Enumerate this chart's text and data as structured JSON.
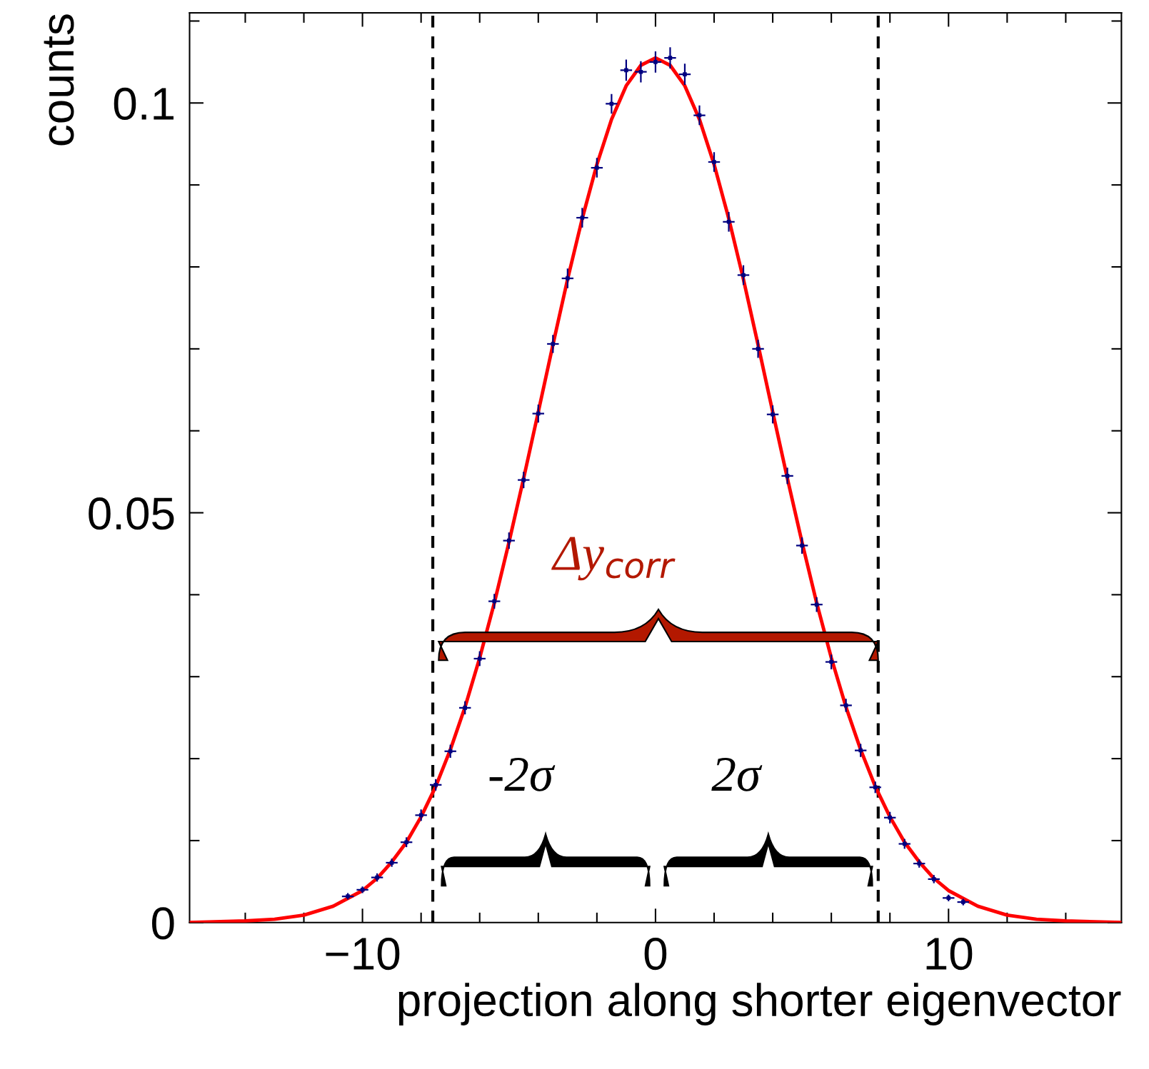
{
  "chart_data": {
    "type": "scatter",
    "xlabel": "projection along shorter eigenvector",
    "ylabel": "counts",
    "xlim": [
      -15.9,
      15.9
    ],
    "ylim": [
      0,
      0.111
    ],
    "xticks": [
      {
        "value": -14,
        "label": null
      },
      {
        "value": -12,
        "label": null
      },
      {
        "value": -10,
        "label": "−10"
      },
      {
        "value": -8,
        "label": null
      },
      {
        "value": -6,
        "label": null
      },
      {
        "value": -4,
        "label": null
      },
      {
        "value": -2,
        "label": null
      },
      0,
      {
        "value": 2,
        "label": null
      },
      {
        "value": 4,
        "label": null
      },
      {
        "value": 6,
        "label": null
      },
      {
        "value": 8,
        "label": null
      },
      10,
      {
        "value": 12,
        "label": null
      },
      {
        "value": 14,
        "label": null
      }
    ],
    "yticks": [
      0,
      {
        "value": 0.01,
        "label": null
      },
      {
        "value": 0.02,
        "label": null
      },
      {
        "value": 0.03,
        "label": null
      },
      {
        "value": 0.04,
        "label": null
      },
      0.05,
      {
        "value": 0.06,
        "label": null
      },
      {
        "value": 0.07,
        "label": null
      },
      {
        "value": 0.08,
        "label": null
      },
      {
        "value": 0.09,
        "label": null
      },
      0.1,
      {
        "value": 0.11,
        "label": null
      }
    ],
    "grid": false,
    "legend": false,
    "series": [
      {
        "color": "#000080",
        "marker": "square",
        "x": [
          -10.5,
          -10,
          -9.5,
          -9,
          -8.5,
          -8,
          -7.5,
          -7,
          -6.5,
          -6,
          -5.5,
          -5,
          -4.5,
          -4,
          -3.5,
          -3,
          -2.5,
          -2,
          -1.5,
          -1,
          -0.5,
          0,
          0.5,
          1,
          1.5,
          2,
          2.5,
          3,
          3.5,
          4,
          4.5,
          5,
          5.5,
          6,
          6.5,
          7,
          7.5,
          8,
          8.5,
          9,
          9.5,
          10,
          10.5
        ],
        "values": [
          0.0032,
          0.004,
          0.0055,
          0.0073,
          0.0098,
          0.0131,
          0.0168,
          0.0209,
          0.0262,
          0.0322,
          0.0392,
          0.0466,
          0.054,
          0.0621,
          0.0706,
          0.0786,
          0.086,
          0.0921,
          0.0999,
          0.104,
          0.1038,
          0.105,
          0.1055,
          0.1035,
          0.0985,
          0.0928,
          0.0855,
          0.079,
          0.07,
          0.062,
          0.0545,
          0.046,
          0.0388,
          0.0318,
          0.0265,
          0.021,
          0.0165,
          0.0128,
          0.0096,
          0.0072,
          0.0053,
          0.003,
          0.0025
        ],
        "errors": [
          0.0004,
          0.0004,
          0.0005,
          0.0005,
          0.0006,
          0.0007,
          0.0007,
          0.0008,
          0.0008,
          0.0009,
          0.0009,
          0.001,
          0.001,
          0.0011,
          0.0011,
          0.0012,
          0.0012,
          0.0012,
          0.0012,
          0.0013,
          0.0013,
          0.0013,
          0.0013,
          0.0013,
          0.0012,
          0.0012,
          0.0012,
          0.0012,
          0.0011,
          0.0011,
          0.001,
          0.001,
          0.0009,
          0.0009,
          0.0008,
          0.0008,
          0.0007,
          0.0007,
          0.0006,
          0.0005,
          0.0005,
          0.0004,
          0.0004
        ],
        "xerrors": [
          0.2,
          0.2,
          0.2,
          0.2,
          0.2,
          0.2,
          0.2,
          0.2,
          0.2,
          0.2,
          0.2,
          0.2,
          0.2,
          0.2,
          0.2,
          0.2,
          0.2,
          0.2,
          0.2,
          0.2,
          0.2,
          0.2,
          0.2,
          0.2,
          0.2,
          0.2,
          0.2,
          0.2,
          0.2,
          0.2,
          0.2,
          0.2,
          0.2,
          0.2,
          0.2,
          0.2,
          0.2,
          0.2,
          0.2,
          0.2,
          0.2,
          0.2,
          0.2
        ]
      },
      {
        "type": "line",
        "color": "#ff0000",
        "line_style": "solid",
        "x": [
          -15.9,
          -14,
          -13,
          -12,
          -11,
          -10,
          -9.5,
          -9,
          -8.5,
          -8,
          -7.5,
          -7,
          -6.5,
          -6,
          -5.5,
          -5,
          -4.5,
          -4,
          -3.5,
          -3,
          -2.5,
          -2,
          -1.5,
          -1,
          -0.5,
          0,
          0.5,
          1,
          1.5,
          2,
          2.5,
          3,
          3.5,
          4,
          4.5,
          5,
          5.5,
          6,
          6.5,
          7,
          7.5,
          8,
          8.5,
          9,
          9.5,
          10,
          11,
          12,
          13,
          14,
          15.9
        ],
        "values": [
          0.0,
          0.0002,
          0.0004,
          0.0009,
          0.002,
          0.0039,
          0.0054,
          0.0074,
          0.0098,
          0.0129,
          0.0166,
          0.0211,
          0.0263,
          0.0323,
          0.039,
          0.0464,
          0.0542,
          0.0623,
          0.0705,
          0.0785,
          0.0859,
          0.0925,
          0.098,
          0.1021,
          0.1046,
          0.1055,
          0.1046,
          0.1021,
          0.098,
          0.0925,
          0.0859,
          0.0785,
          0.0705,
          0.0623,
          0.0542,
          0.0464,
          0.039,
          0.0323,
          0.0263,
          0.0211,
          0.0166,
          0.0129,
          0.0098,
          0.0074,
          0.0054,
          0.0039,
          0.002,
          0.0009,
          0.0004,
          0.0002,
          0.0
        ]
      }
    ],
    "ref_lines": [
      {
        "axis": "x",
        "value": -7.6,
        "color": "#000000",
        "line_style": "dashed"
      },
      {
        "axis": "x",
        "value": 7.6,
        "color": "#000000",
        "line_style": "dashed"
      }
    ],
    "annotations": [
      "Δy$_{corr}$",
      "-2σ",
      "2σ"
    ]
  }
}
